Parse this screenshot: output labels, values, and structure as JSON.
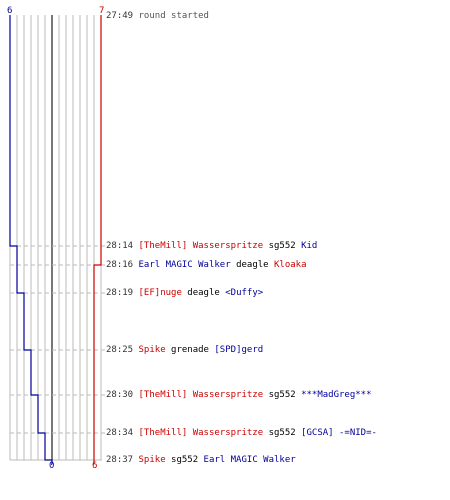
{
  "colors": {
    "red_team": "#cc0000",
    "blue_team": "#000099",
    "grid": "#bbbbbb",
    "center_line": "#777777",
    "dash": "#bbbbbb"
  },
  "counts": {
    "blue_start": "6",
    "red_start": "7",
    "blue_end": "0",
    "red_end": "6"
  },
  "start_event": {
    "time": "27:49",
    "text": "round started"
  },
  "events": [
    {
      "time": "28:14",
      "killer": "[TheMill] Wasserspritze",
      "killer_team": "red",
      "weapon": "sg552",
      "victim": "Kid",
      "victim_team": "blue",
      "blue_after": 5,
      "red_after": 7
    },
    {
      "time": "28:16",
      "killer": "Earl MAGIC Walker",
      "killer_team": "blue",
      "weapon": "deagle",
      "victim": "Kloaka",
      "victim_team": "red",
      "blue_after": 5,
      "red_after": 6
    },
    {
      "time": "28:19",
      "killer": "[EF]nuge",
      "killer_team": "red",
      "weapon": "deagle",
      "victim": "<Duffy>",
      "victim_team": "blue",
      "blue_after": 4,
      "red_after": 6
    },
    {
      "time": "28:25",
      "killer": "Spike",
      "killer_team": "red",
      "weapon": "grenade",
      "victim": "[SPD]gerd",
      "victim_team": "blue",
      "blue_after": 3,
      "red_after": 6
    },
    {
      "time": "28:30",
      "killer": "[TheMill] Wasserspritze",
      "killer_team": "red",
      "weapon": "sg552",
      "victim": "***MadGreg***",
      "victim_team": "blue",
      "blue_after": 2,
      "red_after": 6
    },
    {
      "time": "28:34",
      "killer": "[TheMill] Wasserspritze",
      "killer_team": "red",
      "weapon": "sg552",
      "victim": "[GCSA] -=NID=-",
      "victim_team": "blue",
      "blue_after": 1,
      "red_after": 6
    },
    {
      "time": "28:37",
      "killer": "Spike",
      "killer_team": "red",
      "weapon": "sg552",
      "victim": "Earl MAGIC Walker",
      "victim_team": "blue",
      "blue_after": 0,
      "red_after": 6
    }
  ]
}
